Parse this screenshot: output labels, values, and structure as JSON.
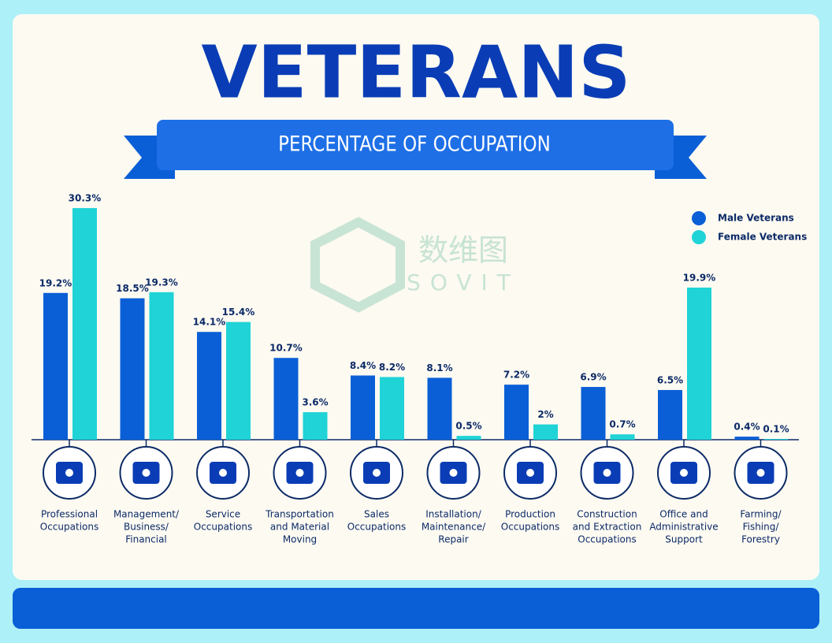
{
  "chart_data": {
    "type": "bar",
    "title": "VETERANS",
    "subtitle": "PERCENTAGE OF OCCUPATION",
    "watermark": [
      "数维图",
      "SOVIT"
    ],
    "categories": [
      [
        "Professional",
        "Occupations"
      ],
      [
        "Management/",
        "Business/",
        "Financial"
      ],
      [
        "Service",
        "Occupations"
      ],
      [
        "Transportation",
        "and Material",
        "Moving"
      ],
      [
        "Sales",
        "Occupations"
      ],
      [
        "Installation/",
        "Maintenance/",
        "Repair"
      ],
      [
        "Production",
        "Occupations"
      ],
      [
        "Construction",
        "and Extraction",
        "Occupations"
      ],
      [
        "Office and",
        "Administrative",
        "Support"
      ],
      [
        "Farming/",
        "Fishing/",
        "Forestry"
      ]
    ],
    "series": [
      {
        "name": "Male Veterans",
        "color": "#0a5fd6",
        "values": [
          19.2,
          18.5,
          14.1,
          10.7,
          8.4,
          8.1,
          7.2,
          6.9,
          6.5,
          0.4
        ],
        "value_labels": [
          "19.2%",
          "18.5%",
          "14.1%",
          "10.7%",
          "8.4%",
          "8.1%",
          "7.2%",
          "6.9%",
          "6.5%",
          "0.4%"
        ]
      },
      {
        "name": "Female Veterans",
        "color": "#1fd3d6",
        "values": [
          30.3,
          19.3,
          15.4,
          3.6,
          8.2,
          0.5,
          2,
          0.7,
          19.9,
          0.1
        ],
        "value_labels": [
          "30.3%",
          "19.3%",
          "15.4%",
          "3.6%",
          "8.2%",
          "0.5%",
          "2%",
          "0.7%",
          "19.9%",
          "0.1%"
        ]
      }
    ],
    "legend": "top-right"
  }
}
